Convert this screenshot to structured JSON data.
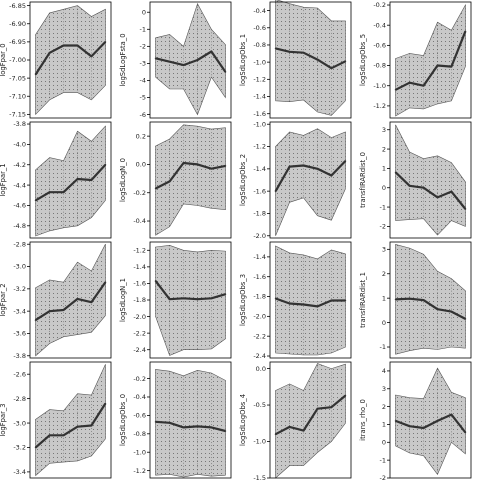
{
  "colors": {
    "band": "#c8c8c8",
    "band_edge": "#555555",
    "line": "#333333",
    "dots": "#777777",
    "frame": "#000000"
  },
  "chart_data": [
    {
      "type": "area",
      "ylabel": "logFpar_0",
      "x": [
        0,
        1,
        2,
        3,
        4,
        5
      ],
      "values": [
        -7.04,
        -6.98,
        -6.96,
        -6.96,
        -6.99,
        -6.95
      ],
      "lower": [
        -7.15,
        -7.11,
        -7.09,
        -7.09,
        -7.11,
        -7.07
      ],
      "upper": [
        -6.93,
        -6.87,
        -6.86,
        -6.85,
        -6.88,
        -6.86
      ],
      "ylim": [
        -7.16,
        -6.84
      ],
      "yticks": [
        -7.15,
        -7.1,
        -7.05,
        -7.0,
        -6.95,
        -6.9,
        -6.85
      ],
      "yticklabels": [
        "-7.15",
        "-7.10",
        "-7.05",
        "-7.00",
        "-6.95",
        "-6.90",
        "-6.85"
      ]
    },
    {
      "type": "area",
      "ylabel": "logSdLogFsta_0",
      "x": [
        0,
        1,
        2,
        3,
        4,
        5
      ],
      "values": [
        -2.7,
        -2.9,
        -3.1,
        -2.8,
        -2.3,
        -3.5
      ],
      "lower": [
        -3.8,
        -4.5,
        -4.5,
        -6.0,
        -3.8,
        -5.0
      ],
      "upper": [
        -1.5,
        -1.3,
        -2.0,
        0.5,
        -1.0,
        -1.9
      ],
      "ylim": [
        -6.2,
        0.6
      ],
      "yticks": [
        -6,
        -5,
        -4,
        -3,
        -2,
        -1,
        0
      ],
      "yticklabels": [
        "-6",
        "-5",
        "-4",
        "-3",
        "-2",
        "-1",
        "0"
      ]
    },
    {
      "type": "area",
      "ylabel": "logSdLogObs_1",
      "x": [
        0,
        1,
        2,
        3,
        4,
        5
      ],
      "values": [
        -0.84,
        -0.88,
        -0.89,
        -0.97,
        -1.07,
        -0.99
      ],
      "lower": [
        -1.45,
        -1.46,
        -1.44,
        -1.58,
        -1.62,
        -1.45
      ],
      "upper": [
        -0.27,
        -0.32,
        -0.36,
        -0.37,
        -0.52,
        -0.52
      ],
      "ylim": [
        -1.65,
        -0.3
      ],
      "yticks": [
        -1.6,
        -1.4,
        -1.2,
        -1.0,
        -0.8,
        -0.6,
        -0.4
      ],
      "yticklabels": [
        "-1.6",
        "-1.4",
        "-1.2",
        "-1.0",
        "-0.8",
        "-0.6",
        "-0.4"
      ]
    },
    {
      "type": "area",
      "ylabel": "logSdLogObs_5",
      "x": [
        0,
        1,
        2,
        3,
        4,
        5
      ],
      "values": [
        -1.04,
        -0.97,
        -1.0,
        -0.8,
        -0.81,
        -0.46
      ],
      "lower": [
        -1.3,
        -1.22,
        -1.23,
        -1.18,
        -1.15,
        -0.81
      ],
      "upper": [
        -0.73,
        -0.68,
        -0.7,
        -0.37,
        -0.45,
        -0.2
      ],
      "ylim": [
        -1.32,
        -0.17
      ],
      "yticks": [
        -1.2,
        -1.0,
        -0.8,
        -0.6,
        -0.4,
        -0.2
      ],
      "yticklabels": [
        "-1.2",
        "-1.0",
        "-0.8",
        "-0.6",
        "-0.4",
        "-0.2"
      ]
    },
    {
      "type": "area",
      "ylabel": "logFpar_1",
      "x": [
        0,
        1,
        2,
        3,
        4,
        5
      ],
      "values": [
        -4.55,
        -4.47,
        -4.47,
        -4.34,
        -4.35,
        -4.2
      ],
      "lower": [
        -4.9,
        -4.85,
        -4.82,
        -4.8,
        -4.72,
        -4.55
      ],
      "upper": [
        -4.25,
        -4.13,
        -4.16,
        -3.87,
        -3.97,
        -3.82
      ],
      "ylim": [
        -4.92,
        -3.78
      ],
      "yticks": [
        -4.8,
        -4.6,
        -4.4,
        -4.2,
        -4.0,
        -3.8
      ],
      "yticklabels": [
        "-4.8",
        "-4.6",
        "-4.4",
        "-4.2",
        "-4.0",
        "-3.8"
      ]
    },
    {
      "type": "area",
      "ylabel": "logSdLogN_0",
      "x": [
        0,
        1,
        2,
        3,
        4,
        5
      ],
      "values": [
        -0.17,
        -0.12,
        0.01,
        0.0,
        -0.03,
        -0.01
      ],
      "lower": [
        -0.5,
        -0.44,
        -0.28,
        -0.29,
        -0.31,
        -0.32
      ],
      "upper": [
        0.13,
        0.18,
        0.28,
        0.27,
        0.25,
        0.26
      ],
      "ylim": [
        -0.52,
        0.3
      ],
      "yticks": [
        -0.4,
        -0.2,
        0.0,
        0.2
      ],
      "yticklabels": [
        "-0.4",
        "-0.2",
        "0.0",
        "0.2"
      ]
    },
    {
      "type": "area",
      "ylabel": "logSdLogObs_2",
      "x": [
        0,
        1,
        2,
        3,
        4,
        5
      ],
      "values": [
        -1.6,
        -1.38,
        -1.37,
        -1.4,
        -1.46,
        -1.33
      ],
      "lower": [
        -2.0,
        -1.7,
        -1.66,
        -1.82,
        -1.86,
        -1.58
      ],
      "upper": [
        -1.2,
        -1.07,
        -1.1,
        -1.04,
        -1.12,
        -1.07
      ],
      "ylim": [
        -2.02,
        -0.98
      ],
      "yticks": [
        -2.0,
        -1.8,
        -1.6,
        -1.4,
        -1.2,
        -1.0
      ],
      "yticklabels": [
        "-2.0",
        "-1.8",
        "-1.6",
        "-1.4",
        "-1.2",
        "-1.0"
      ]
    },
    {
      "type": "area",
      "ylabel": "transfIRARdist_0",
      "x": [
        0,
        1,
        2,
        3,
        4,
        5
      ],
      "values": [
        0.8,
        0.1,
        0.0,
        -0.5,
        -0.2,
        -1.1
      ],
      "lower": [
        -1.7,
        -1.65,
        -1.6,
        -2.45,
        -1.7,
        -2.0
      ],
      "upper": [
        3.25,
        1.85,
        1.5,
        1.65,
        1.3,
        0.3
      ],
      "ylim": [
        -2.6,
        3.4
      ],
      "yticks": [
        -2,
        -1,
        0,
        1,
        2,
        3
      ],
      "yticklabels": [
        "-2",
        "-1",
        "0",
        "1",
        "2",
        "3"
      ]
    },
    {
      "type": "area",
      "ylabel": "logFpar_2",
      "x": [
        0,
        1,
        2,
        3,
        4,
        5
      ],
      "values": [
        -3.48,
        -3.4,
        -3.39,
        -3.29,
        -3.32,
        -3.14
      ],
      "lower": [
        -3.8,
        -3.69,
        -3.63,
        -3.61,
        -3.59,
        -3.44
      ],
      "upper": [
        -3.19,
        -3.12,
        -3.14,
        -2.96,
        -3.04,
        -2.8
      ],
      "ylim": [
        -3.82,
        -2.78
      ],
      "yticks": [
        -3.8,
        -3.6,
        -3.4,
        -3.2,
        -3.0,
        -2.8
      ],
      "yticklabels": [
        "-3.8",
        "-3.6",
        "-3.4",
        "-3.2",
        "-3.0",
        "-2.8"
      ]
    },
    {
      "type": "area",
      "ylabel": "logSdLogN_1",
      "x": [
        0,
        1,
        2,
        3,
        4,
        5
      ],
      "values": [
        -1.57,
        -1.79,
        -1.78,
        -1.79,
        -1.78,
        -1.73
      ],
      "lower": [
        -2.0,
        -2.47,
        -2.4,
        -2.4,
        -2.39,
        -2.27
      ],
      "upper": [
        -1.16,
        -1.14,
        -1.2,
        -1.22,
        -1.2,
        -1.21
      ],
      "ylim": [
        -2.5,
        -1.1
      ],
      "yticks": [
        -2.4,
        -2.2,
        -2.0,
        -1.8,
        -1.6,
        -1.4,
        -1.2
      ],
      "yticklabels": [
        "-2.4",
        "-2.2",
        "-2.0",
        "-1.8",
        "-1.6",
        "-1.4",
        "-1.2"
      ]
    },
    {
      "type": "area",
      "ylabel": "logSdLogObs_3",
      "x": [
        0,
        1,
        2,
        3,
        4,
        5
      ],
      "values": [
        -1.82,
        -1.87,
        -1.88,
        -1.9,
        -1.84,
        -1.84
      ],
      "lower": [
        -2.37,
        -2.38,
        -2.39,
        -2.39,
        -2.37,
        -2.31
      ],
      "upper": [
        -1.29,
        -1.36,
        -1.38,
        -1.42,
        -1.33,
        -1.37
      ],
      "ylim": [
        -2.42,
        -1.25
      ],
      "yticks": [
        -2.4,
        -2.2,
        -2.0,
        -1.8,
        -1.6,
        -1.4
      ],
      "yticklabels": [
        "-2.4",
        "-2.2",
        "-2.0",
        "-1.8",
        "-1.6",
        "-1.4"
      ]
    },
    {
      "type": "area",
      "ylabel": "transfIRARdist_1",
      "x": [
        0,
        1,
        2,
        3,
        4,
        5
      ],
      "values": [
        0.95,
        0.98,
        0.92,
        0.55,
        0.45,
        0.15
      ],
      "lower": [
        -1.3,
        -1.15,
        -1.05,
        -1.1,
        -1.0,
        -1.05
      ],
      "upper": [
        3.2,
        3.05,
        2.8,
        2.1,
        1.8,
        1.3
      ],
      "ylim": [
        -1.45,
        3.3
      ],
      "yticks": [
        -1,
        0,
        1,
        2,
        3
      ],
      "yticklabels": [
        "-1",
        "0",
        "1",
        "2",
        "3"
      ]
    },
    {
      "type": "area",
      "ylabel": "logFpar_3",
      "x": [
        0,
        1,
        2,
        3,
        4,
        5
      ],
      "values": [
        -3.2,
        -3.1,
        -3.1,
        -3.03,
        -3.02,
        -2.84
      ],
      "lower": [
        -3.43,
        -3.33,
        -3.32,
        -3.31,
        -3.27,
        -3.13
      ],
      "upper": [
        -2.97,
        -2.89,
        -2.9,
        -2.76,
        -2.77,
        -2.52
      ],
      "ylim": [
        -3.45,
        -2.5
      ],
      "yticks": [
        -3.4,
        -3.2,
        -3.0,
        -2.8,
        -2.6
      ],
      "yticklabels": [
        "-3.4",
        "-3.2",
        "-3.0",
        "-2.8",
        "-2.6"
      ]
    },
    {
      "type": "area",
      "ylabel": "logSdLogObs_0",
      "x": [
        0,
        1,
        2,
        3,
        4,
        5
      ],
      "values": [
        -0.67,
        -0.68,
        -0.73,
        -0.72,
        -0.73,
        -0.77
      ],
      "lower": [
        -1.25,
        -1.24,
        -1.27,
        -1.24,
        -1.26,
        -1.25
      ],
      "upper": [
        -0.1,
        -0.12,
        -0.17,
        -0.11,
        -0.14,
        -0.22
      ],
      "ylim": [
        -1.28,
        -0.02
      ],
      "yticks": [
        -1.2,
        -1.0,
        -0.8,
        -0.6,
        -0.4,
        -0.2
      ],
      "yticklabels": [
        "-1.2",
        "-1.0",
        "-0.8",
        "-0.6",
        "-0.4",
        "-0.2"
      ]
    },
    {
      "type": "area",
      "ylabel": "logSdLogObs_4",
      "x": [
        0,
        1,
        2,
        3,
        4,
        5
      ],
      "values": [
        -0.9,
        -0.8,
        -0.85,
        -0.55,
        -0.53,
        -0.37
      ],
      "lower": [
        -1.5,
        -1.33,
        -1.33,
        -1.15,
        -1.0,
        -0.75
      ],
      "upper": [
        -0.3,
        -0.21,
        -0.3,
        0.07,
        0.0,
        0.06
      ],
      "ylim": [
        -1.5,
        0.09
      ],
      "yticks": [
        -1.5,
        -1.0,
        -0.5,
        0.0
      ],
      "yticklabels": [
        "-1.5",
        "-1.0",
        "-0.5",
        "0.0"
      ]
    },
    {
      "type": "area",
      "ylabel": "itrans_rho_0",
      "x": [
        0,
        1,
        2,
        3,
        4,
        5
      ],
      "values": [
        1.2,
        0.9,
        0.8,
        1.2,
        1.55,
        0.55
      ],
      "lower": [
        -0.2,
        -0.6,
        -0.75,
        -1.8,
        0.0,
        -0.65
      ],
      "upper": [
        2.65,
        2.5,
        2.45,
        4.15,
        2.8,
        2.5
      ],
      "ylim": [
        -2.0,
        4.5
      ],
      "yticks": [
        -2,
        -1,
        0,
        1,
        2,
        3,
        4
      ],
      "yticklabels": [
        "-2",
        "-1",
        "0",
        "1",
        "2",
        "3",
        "4"
      ]
    }
  ]
}
